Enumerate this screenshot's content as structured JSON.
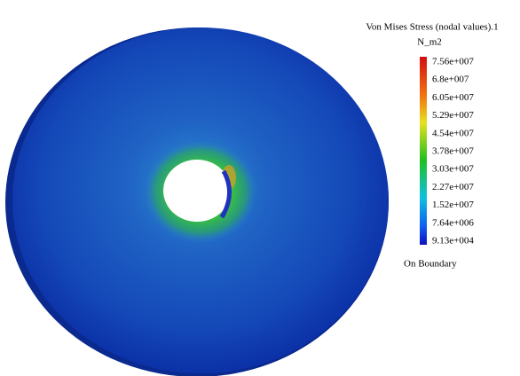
{
  "legend": {
    "title": "Von Mises Stress (nodal values).1",
    "unit": "N_m2",
    "labels": [
      "7.56e+007",
      "6.8e+007",
      "6.05e+007",
      "5.29e+007",
      "4.54e+007",
      "3.78e+007",
      "3.03e+007",
      "2.27e+007",
      "1.52e+007",
      "7.64e+006",
      "9.13e+004"
    ],
    "footer": "On Boundary"
  }
}
